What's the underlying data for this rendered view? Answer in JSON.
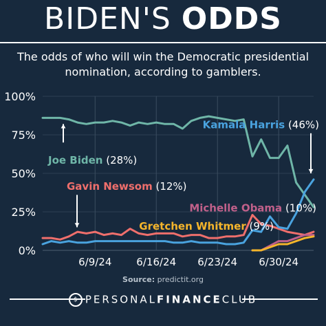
{
  "header": {
    "title_light": "BIDEN'S ",
    "title_bold": "ODDS",
    "subtitle_line1": "The odds of who will win the Democratic presidential",
    "subtitle_line2": "nomination, according to gamblers."
  },
  "source": {
    "label": "Source:",
    "text": "predictit.org"
  },
  "footer": {
    "brand_light1": "PERSONAL",
    "brand_bold": "FINANCE",
    "brand_light2": "CLUB"
  },
  "colors": {
    "background": "#17293d",
    "biden": "#6fb6a8",
    "harris": "#4aa3df",
    "newsom": "#ef6f6c",
    "obama": "#c0608a",
    "whitmer": "#f5b52b",
    "grid": "#3b4d60"
  },
  "chart_data": {
    "type": "line",
    "x_ticks": [
      "6/9/24",
      "6/16/24",
      "6/23/24",
      "6/30/24"
    ],
    "y_ticks": [
      "0%",
      "25%",
      "50%",
      "75%",
      "100%"
    ],
    "ylim": [
      0,
      100
    ],
    "grid": true,
    "series": [
      {
        "name": "Joe Biden",
        "label": "Joe Biden (28%)",
        "color": "#6fb6a8",
        "x": [
          "6/3/24",
          "6/4/24",
          "6/5/24",
          "6/6/24",
          "6/7/24",
          "6/8/24",
          "6/9/24",
          "6/10/24",
          "6/11/24",
          "6/12/24",
          "6/13/24",
          "6/14/24",
          "6/15/24",
          "6/16/24",
          "6/17/24",
          "6/18/24",
          "6/19/24",
          "6/20/24",
          "6/21/24",
          "6/22/24",
          "6/23/24",
          "6/24/24",
          "6/25/24",
          "6/26/24",
          "6/27/24",
          "6/28/24",
          "6/29/24",
          "6/30/24",
          "7/1/24",
          "7/2/24",
          "7/3/24",
          "7/4/24"
        ],
        "values": [
          86,
          86,
          86,
          85,
          83,
          82,
          83,
          83,
          84,
          83,
          81,
          83,
          82,
          83,
          82,
          82,
          79,
          84,
          86,
          87,
          86,
          85,
          84,
          85,
          61,
          72,
          60,
          60,
          68,
          44,
          36,
          28
        ]
      },
      {
        "name": "Kamala Harris",
        "label": "Kamala Harris (46%)",
        "color": "#4aa3df",
        "x": [
          "6/3/24",
          "6/4/24",
          "6/5/24",
          "6/6/24",
          "6/7/24",
          "6/8/24",
          "6/9/24",
          "6/10/24",
          "6/11/24",
          "6/12/24",
          "6/13/24",
          "6/14/24",
          "6/15/24",
          "6/16/24",
          "6/17/24",
          "6/18/24",
          "6/19/24",
          "6/20/24",
          "6/21/24",
          "6/22/24",
          "6/23/24",
          "6/24/24",
          "6/25/24",
          "6/26/24",
          "6/27/24",
          "6/28/24",
          "6/29/24",
          "6/30/24",
          "7/1/24",
          "7/2/24",
          "7/3/24",
          "7/4/24"
        ],
        "values": [
          4,
          6,
          5,
          6,
          5,
          5,
          6,
          6,
          6,
          6,
          6,
          6,
          6,
          6,
          6,
          5,
          5,
          6,
          5,
          5,
          5,
          4,
          4,
          5,
          13,
          12,
          22,
          15,
          14,
          24,
          38,
          46
        ]
      },
      {
        "name": "Gavin Newsom",
        "label": "Gavin Newsom (12%)",
        "color": "#ef6f6c",
        "x": [
          "6/3/24",
          "6/4/24",
          "6/5/24",
          "6/6/24",
          "6/7/24",
          "6/8/24",
          "6/9/24",
          "6/10/24",
          "6/11/24",
          "6/12/24",
          "6/13/24",
          "6/14/24",
          "6/15/24",
          "6/16/24",
          "6/17/24",
          "6/18/24",
          "6/19/24",
          "6/20/24",
          "6/21/24",
          "6/22/24",
          "6/23/24",
          "6/24/24",
          "6/25/24",
          "6/26/24",
          "6/27/24",
          "6/28/24",
          "6/29/24",
          "6/30/24",
          "7/1/24",
          "7/2/24",
          "7/3/24",
          "7/4/24"
        ],
        "values": [
          8,
          8,
          7,
          9,
          12,
          11,
          12,
          10,
          11,
          10,
          14,
          11,
          10,
          11,
          11,
          11,
          9,
          10,
          10,
          8,
          8,
          9,
          9,
          10,
          23,
          17,
          16,
          14,
          12,
          11,
          10,
          12
        ]
      },
      {
        "name": "Michelle Obama",
        "label": "Michelle Obama (10%)",
        "color": "#c0608a",
        "x": [
          "6/27/24",
          "6/28/24",
          "6/29/24",
          "6/30/24",
          "7/1/24",
          "7/2/24",
          "7/3/24",
          "7/4/24"
        ],
        "values": [
          0,
          0,
          3,
          6,
          6,
          8,
          10,
          10
        ]
      },
      {
        "name": "Gretchen Whitmer",
        "label": "Gretchen Whitmer (9%)",
        "color": "#f5b52b",
        "x": [
          "6/27/24",
          "6/28/24",
          "6/29/24",
          "6/30/24",
          "7/1/24",
          "7/2/24",
          "7/3/24",
          "7/4/24"
        ],
        "values": [
          0,
          0,
          2,
          4,
          4,
          6,
          8,
          9
        ]
      }
    ]
  }
}
